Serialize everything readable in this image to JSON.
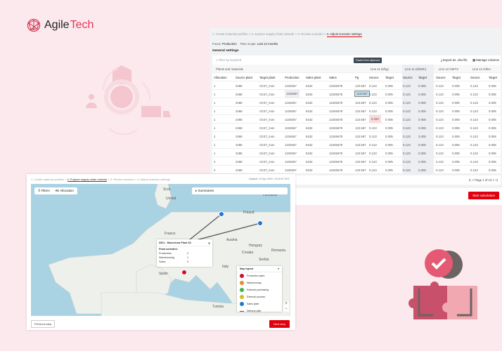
{
  "brand": {
    "name_part1": "Agile",
    "name_part2": "Tech"
  },
  "colors": {
    "accent": "#e2000f",
    "brand": "#e03a55"
  },
  "top_panel": {
    "breadcrumb": [
      "1. Create material portfolio",
      "2. Explore supply-chain network",
      "3. Review scenario",
      "4. Adjust scenario settings"
    ],
    "focus_label": "Focus:",
    "focus_value": "Production",
    "time_label": "Time scope:",
    "time_value": "Last 12 months",
    "section_title": "General settings",
    "filter_placeholder": "Filter by keyword",
    "export_label": "Export as .xlsx file",
    "manage_label": "Manage columns",
    "groups": [
      "Plants and materials",
      "Line 11 (€/kg)",
      "Line 11 (€/kWh)",
      "Line 12 CBITS",
      "Line 12 Other"
    ],
    "columns": [
      "Allocation",
      "Source plant",
      "Target plant",
      "Production",
      "Sales plant",
      "Sales",
      "Pg",
      "Source",
      "Target",
      "Source",
      "Target",
      "Source",
      "Target",
      "Source",
      "Target"
    ],
    "rows": [
      [
        "1",
        "2468",
        "CK37_mon",
        "1234567",
        "5432",
        "12345678",
        "123.567",
        "0.123",
        "0.005",
        "0.123",
        "0.005",
        "0.123",
        "0.005",
        "0.123",
        "0.005"
      ],
      [
        "1",
        "2468",
        "CK37_mon",
        "1234567",
        "5432",
        "12345678",
        "123.567",
        "0.123",
        "0.005",
        "0.123",
        "0.005",
        "0.123",
        "0.005",
        "0.123",
        "0.005"
      ],
      [
        "1",
        "2468",
        "CK37_mon",
        "1234567",
        "5432",
        "12345678",
        "123.567",
        "0.123",
        "0.005",
        "0.123",
        "0.005",
        "0.123",
        "0.005",
        "0.123",
        "0.005"
      ],
      [
        "1",
        "2468",
        "CK37_mon",
        "1234567",
        "5432",
        "12345678",
        "123.567",
        "0.123",
        "0.005",
        "0.123",
        "0.005",
        "0.123",
        "0.005",
        "0.123",
        "0.005"
      ],
      [
        "1",
        "2468",
        "CK37_mon",
        "1234567",
        "5432",
        "12345678",
        "123.567",
        "0.200",
        "0.005",
        "0.123",
        "0.005",
        "0.123",
        "0.005",
        "0.123",
        "0.005"
      ],
      [
        "1",
        "2468",
        "CK37_mon",
        "1234567",
        "5432",
        "12345678",
        "123.567",
        "0.123",
        "0.005",
        "0.123",
        "0.005",
        "0.123",
        "0.005",
        "0.123",
        "0.005"
      ],
      [
        "1",
        "2468",
        "CK37_mon",
        "1234567",
        "5432",
        "12345678",
        "123.567",
        "0.123",
        "0.005",
        "0.123",
        "0.005",
        "0.123",
        "0.005",
        "0.123",
        "0.005"
      ],
      [
        "1",
        "2468",
        "CK37_mon",
        "1234567",
        "5432",
        "12345678",
        "123.567",
        "0.123",
        "0.005",
        "0.123",
        "0.005",
        "0.123",
        "0.005",
        "0.123",
        "0.005"
      ],
      [
        "1",
        "2468",
        "CK37_mon",
        "1234567",
        "5432",
        "12345678",
        "123.567",
        "0.123",
        "0.005",
        "0.123",
        "0.005",
        "0.123",
        "0.005",
        "0.123",
        "0.005"
      ],
      [
        "2",
        "2468",
        "CK37_mon",
        "1234567",
        "5432",
        "12345678",
        "123.567",
        "0.123",
        "0.005",
        "0.123",
        "0.005",
        "0.123",
        "0.005",
        "0.123",
        "0.005"
      ],
      [
        "2",
        "2468",
        "CK37_mon",
        "1234567",
        "5432",
        "12345678",
        "123.567",
        "0.123",
        "0.005",
        "0.123",
        "0.005",
        "0.123",
        "0.005",
        "0.123",
        "0.005"
      ]
    ],
    "tooltip": "Pasted from clipboard",
    "pagination": "Page 1 of 10",
    "start_button": "Start calculation"
  },
  "bottom_panel": {
    "breadcrumb": [
      "1. Create material portfolio",
      "2. Explore supply-chain network",
      "3. Review scenario",
      "4. Adjust scenario settings"
    ],
    "dataset": "Dataset: 12 Apr 2022, 15:20:47 CET",
    "filters_button": "Filters",
    "allocation_button": "Allocation",
    "summaries_button": "Summaries",
    "map_labels": [
      "Scot.",
      "United",
      "Lithuania",
      "Poland",
      "France",
      "Austria",
      "Hungary",
      "Croatia",
      "Romania",
      "Serbia",
      "Italy",
      "Spain",
      "Tunisia"
    ],
    "popup": {
      "title": "6521 - Barcelona Plant 63",
      "subtitle": "Plant activities",
      "rows": [
        {
          "k": "Production",
          "v": "2"
        },
        {
          "k": "Warehousing",
          "v": "1"
        },
        {
          "k": "Sales",
          "v": "0"
        }
      ]
    },
    "legend": {
      "title": "Map legend",
      "items": [
        {
          "label": "Production plant",
          "color": "#c8102e"
        },
        {
          "label": "Warehousing",
          "color": "#f08a24"
        },
        {
          "label": "External purchasing",
          "color": "#3bb54a"
        },
        {
          "label": "External process",
          "color": "#c9c21c"
        },
        {
          "label": "Sales plant",
          "color": "#1f77d0"
        }
      ],
      "path_label": "Delivery path"
    },
    "prev_button": "Previous step",
    "next_button": "Next step"
  }
}
